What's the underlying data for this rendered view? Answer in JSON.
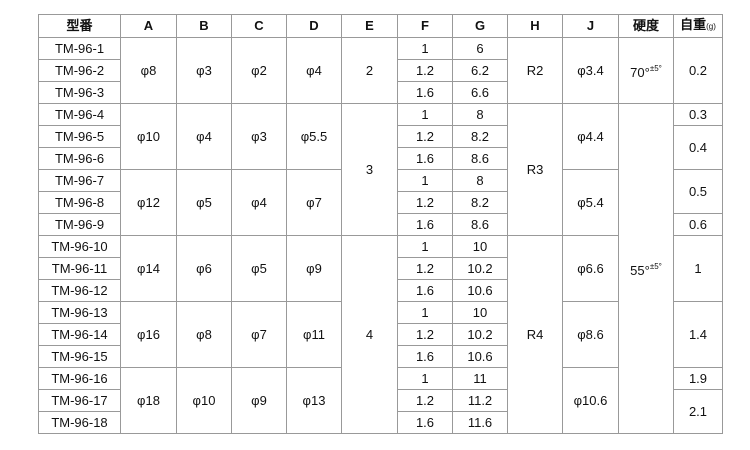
{
  "table": {
    "header": [
      "型番",
      "A",
      "B",
      "C",
      "D",
      "E",
      "F",
      "G",
      "H",
      "J",
      "硬度",
      {
        "text": "自重",
        "small": "(g)"
      }
    ],
    "rows": [
      [
        "TM-96-1",
        "φ8",
        "φ3",
        "φ2",
        "φ4",
        "2",
        "1",
        "6",
        "R2",
        "φ3.4",
        {
          "text": "70°",
          "sup": "±5°"
        },
        "0.2"
      ],
      [
        "TM-96-2",
        "1.2",
        "6.2"
      ],
      [
        "TM-96-3",
        "1.6",
        "6.6"
      ],
      [
        "TM-96-4",
        "φ10",
        "φ4",
        "φ3",
        "φ5.5",
        "3",
        "1",
        "8",
        "R3",
        "φ4.4",
        {
          "text": "55°",
          "sup": "±5°"
        },
        "0.3"
      ],
      [
        "TM-96-5",
        "1.2",
        "8.2",
        "0.4"
      ],
      [
        "TM-96-6",
        "1.6",
        "8.6"
      ],
      [
        "TM-96-7",
        "φ12",
        "φ5",
        "φ4",
        "φ7",
        "1",
        "8",
        "φ5.4",
        "0.5"
      ],
      [
        "TM-96-8",
        "1.2",
        "8.2"
      ],
      [
        "TM-96-9",
        "1.6",
        "8.6",
        "0.6"
      ],
      [
        "TM-96-10",
        "φ14",
        "φ6",
        "φ5",
        "φ9",
        "4",
        "1",
        "10",
        "R4",
        "φ6.6",
        "1"
      ],
      [
        "TM-96-11",
        "1.2",
        "10.2"
      ],
      [
        "TM-96-12",
        "1.6",
        "10.6"
      ],
      [
        "TM-96-13",
        "φ16",
        "φ8",
        "φ7",
        "φ11",
        "1",
        "10",
        "φ8.6",
        "1.4"
      ],
      [
        "TM-96-14",
        "1.2",
        "10.2"
      ],
      [
        "TM-96-15",
        "1.6",
        "10.6"
      ],
      [
        "TM-96-16",
        "φ18",
        "φ10",
        "φ9",
        "φ13",
        "1",
        "11",
        "φ10.6",
        "1.9"
      ],
      [
        "TM-96-17",
        "1.2",
        "11.2",
        "2.1"
      ],
      [
        "TM-96-18",
        "1.6",
        "11.6"
      ]
    ]
  }
}
